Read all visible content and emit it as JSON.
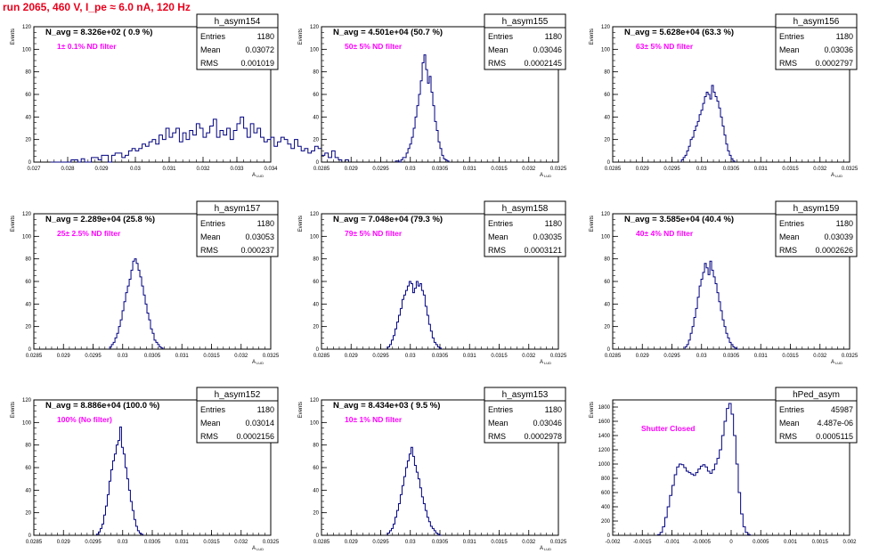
{
  "title": "run 2065,   460 V, I_pe ≈ 6.0 nA, 120 Hz",
  "colors": {
    "title": "#e8001c",
    "histogram": "#000080",
    "annotation": "#ff00ff",
    "frame": "#000000"
  },
  "chart_data": [
    {
      "type": "histogram",
      "name": "h_asym154",
      "navg": "N_avg = 8.326e+02 ( 0.9 %)",
      "annotation": "1± 0.1% ND filter",
      "stats": [
        [
          "Entries",
          "1180"
        ],
        [
          "Mean",
          "0.03072"
        ],
        [
          "RMS",
          "0.001019"
        ]
      ],
      "ylabel": "Events",
      "xlabel": "A",
      "xlim": [
        0.027,
        0.034
      ],
      "ylim": [
        0,
        120
      ],
      "xticks": [
        "0.027",
        "0.028",
        "0.029",
        "0.03",
        "0.031",
        "0.032",
        "0.033",
        "0.034"
      ],
      "xtick_values": [
        0.027,
        0.028,
        0.029,
        0.03,
        0.031,
        0.032,
        0.033,
        0.034
      ],
      "yticks": [
        0,
        20,
        40,
        60,
        80,
        100,
        120
      ],
      "bins": {
        "start": 0.0275,
        "width": 0.0001,
        "counts": [
          0,
          0,
          0,
          0,
          0,
          0,
          2,
          2,
          0,
          3,
          0,
          0,
          4,
          4,
          2,
          6,
          6,
          0,
          6,
          8,
          8,
          4,
          6,
          10,
          12,
          10,
          12,
          16,
          14,
          18,
          20,
          16,
          24,
          20,
          30,
          22,
          26,
          30,
          18,
          26,
          20,
          28,
          24,
          34,
          30,
          22,
          26,
          32,
          38,
          22,
          28,
          24,
          30,
          20,
          28,
          34,
          40,
          30,
          22,
          34,
          26,
          30,
          22,
          18,
          20,
          22,
          14,
          18,
          22,
          20,
          16,
          12,
          20,
          14,
          10,
          12,
          8,
          10,
          14,
          12,
          6,
          8,
          4,
          10,
          4,
          2,
          0,
          2,
          0,
          0
        ]
      }
    },
    {
      "type": "histogram",
      "name": "h_asym155",
      "navg": "N_avg = 4.501e+04 (50.7 %)",
      "annotation": "50± 5% ND filter",
      "stats": [
        [
          "Entries",
          "1180"
        ],
        [
          "Mean",
          "0.03046"
        ],
        [
          "RMS",
          "0.0002145"
        ]
      ],
      "ylabel": "Events",
      "xlabel": "A",
      "xlim": [
        0.0285,
        0.0325
      ],
      "ylim": [
        0,
        120
      ],
      "xticks": [
        "0.0285",
        "0.029",
        "0.0295",
        "0.03",
        "0.0305",
        "0.031",
        "0.0315",
        "0.032",
        "0.0325"
      ],
      "xtick_values": [
        0.0285,
        0.029,
        0.0295,
        0.03,
        0.0305,
        0.031,
        0.0315,
        0.032,
        0.0325
      ],
      "yticks": [
        0,
        20,
        40,
        60,
        80,
        100,
        120
      ],
      "bins": {
        "start": 0.02975,
        "width": 3e-05,
        "counts": [
          1,
          1,
          0,
          2,
          4,
          4,
          8,
          12,
          16,
          22,
          30,
          40,
          50,
          60,
          72,
          88,
          95,
          82,
          70,
          76,
          62,
          50,
          36,
          28,
          18,
          12,
          6,
          3,
          2,
          1
        ]
      }
    },
    {
      "type": "histogram",
      "name": "h_asym156",
      "navg": "N_avg = 5.628e+04 (63.3 %)",
      "annotation": "63± 5% ND filter",
      "stats": [
        [
          "Entries",
          "1180"
        ],
        [
          "Mean",
          "0.03036"
        ],
        [
          "RMS",
          "0.0002797"
        ]
      ],
      "ylabel": "Events",
      "xlabel": "A",
      "xlim": [
        0.0285,
        0.0325
      ],
      "ylim": [
        0,
        120
      ],
      "xticks": [
        "0.0285",
        "0.029",
        "0.0295",
        "0.03",
        "0.0305",
        "0.031",
        "0.0315",
        "0.032",
        "0.0325"
      ],
      "xtick_values": [
        0.0285,
        0.029,
        0.0295,
        0.03,
        0.0305,
        0.031,
        0.0315,
        0.032,
        0.0325
      ],
      "yticks": [
        0,
        20,
        40,
        60,
        80,
        100,
        120
      ],
      "bins": {
        "start": 0.02966,
        "width": 3e-05,
        "counts": [
          2,
          4,
          6,
          10,
          14,
          20,
          22,
          28,
          32,
          36,
          42,
          46,
          52,
          58,
          62,
          60,
          56,
          68,
          62,
          58,
          54,
          48,
          40,
          32,
          24,
          16,
          10,
          6,
          3,
          1
        ]
      }
    },
    {
      "type": "histogram",
      "name": "h_asym157",
      "navg": "N_avg = 2.289e+04 (25.8 %)",
      "annotation": "25± 2.5% ND filter",
      "stats": [
        [
          "Entries",
          "1180"
        ],
        [
          "Mean",
          "0.03053"
        ],
        [
          "RMS",
          "0.000237"
        ]
      ],
      "ylabel": "Events",
      "xlabel": "A",
      "xlim": [
        0.0285,
        0.0325
      ],
      "ylim": [
        0,
        120
      ],
      "xticks": [
        "0.0285",
        "0.029",
        "0.0295",
        "0.03",
        "0.0305",
        "0.031",
        "0.0315",
        "0.032",
        "0.0325"
      ],
      "xtick_values": [
        0.0285,
        0.029,
        0.0295,
        0.03,
        0.0305,
        0.031,
        0.0315,
        0.032,
        0.0325
      ],
      "yticks": [
        0,
        20,
        40,
        60,
        80,
        100,
        120
      ],
      "bins": {
        "start": 0.02978,
        "width": 3e-05,
        "counts": [
          2,
          4,
          6,
          10,
          14,
          20,
          26,
          34,
          42,
          50,
          56,
          62,
          70,
          78,
          80,
          76,
          70,
          64,
          56,
          48,
          40,
          32,
          26,
          18,
          14,
          8,
          6,
          4,
          2,
          1
        ]
      }
    },
    {
      "type": "histogram",
      "name": "h_asym158",
      "navg": "N_avg = 7.048e+04 (79.3 %)",
      "annotation": "79± 5% ND filter",
      "stats": [
        [
          "Entries",
          "1180"
        ],
        [
          "Mean",
          "0.03035"
        ],
        [
          "RMS",
          "0.0003121"
        ]
      ],
      "ylabel": "Events",
      "xlabel": "A",
      "xlim": [
        0.0285,
        0.0325
      ],
      "ylim": [
        0,
        120
      ],
      "xticks": [
        "0.0285",
        "0.029",
        "0.0295",
        "0.03",
        "0.0305",
        "0.031",
        "0.0315",
        "0.032",
        "0.0325"
      ],
      "xtick_values": [
        0.0285,
        0.029,
        0.0295,
        0.03,
        0.0305,
        0.031,
        0.0315,
        0.032,
        0.0325
      ],
      "yticks": [
        0,
        20,
        40,
        60,
        80,
        100,
        120
      ],
      "bins": {
        "start": 0.02962,
        "width": 3e-05,
        "counts": [
          2,
          4,
          8,
          12,
          18,
          24,
          30,
          36,
          44,
          48,
          52,
          56,
          60,
          58,
          50,
          54,
          60,
          56,
          58,
          52,
          48,
          38,
          30,
          22,
          16,
          10,
          6,
          4,
          2,
          1
        ]
      }
    },
    {
      "type": "histogram",
      "name": "h_asym159",
      "navg": "N_avg = 3.585e+04 (40.4 %)",
      "annotation": "40± 4% ND filter",
      "stats": [
        [
          "Entries",
          "1180"
        ],
        [
          "Mean",
          "0.03039"
        ],
        [
          "RMS",
          "0.0002626"
        ]
      ],
      "ylabel": "Events",
      "xlabel": "A",
      "xlim": [
        0.0285,
        0.0325
      ],
      "ylim": [
        0,
        120
      ],
      "xticks": [
        "0.0285",
        "0.029",
        "0.0295",
        "0.03",
        "0.0305",
        "0.031",
        "0.0315",
        "0.032",
        "0.0325"
      ],
      "xtick_values": [
        0.0285,
        0.029,
        0.0295,
        0.03,
        0.0305,
        0.031,
        0.0315,
        0.032,
        0.0325
      ],
      "yticks": [
        0,
        20,
        40,
        60,
        80,
        100,
        120
      ],
      "bins": {
        "start": 0.02972,
        "width": 3e-05,
        "counts": [
          2,
          4,
          8,
          14,
          20,
          28,
          36,
          46,
          56,
          62,
          68,
          76,
          72,
          66,
          78,
          70,
          64,
          58,
          50,
          42,
          34,
          26,
          20,
          14,
          10,
          6,
          4,
          2,
          1,
          0
        ]
      }
    },
    {
      "type": "histogram",
      "name": "h_asym152",
      "navg": "N_avg = 8.886e+04 (100.0 %)",
      "annotation": "100% (No filter)",
      "stats": [
        [
          "Entries",
          "1180"
        ],
        [
          "Mean",
          "0.03014"
        ],
        [
          "RMS",
          "0.0002156"
        ]
      ],
      "ylabel": "Events",
      "xlabel": "A",
      "xlim": [
        0.0285,
        0.0325
      ],
      "ylim": [
        0,
        120
      ],
      "xticks": [
        "0.0285",
        "0.029",
        "0.0295",
        "0.03",
        "0.0305",
        "0.031",
        "0.0315",
        "0.032",
        "0.0325"
      ],
      "xtick_values": [
        0.0285,
        0.029,
        0.0295,
        0.03,
        0.0305,
        0.031,
        0.0315,
        0.032,
        0.0325
      ],
      "yticks": [
        0,
        20,
        40,
        60,
        80,
        100,
        120
      ],
      "bins": {
        "start": 0.02956,
        "width": 3e-05,
        "counts": [
          1,
          3,
          6,
          10,
          18,
          26,
          36,
          48,
          58,
          66,
          72,
          80,
          84,
          96,
          78,
          72,
          60,
          50,
          40,
          30,
          22,
          14,
          8,
          4,
          2,
          1
        ]
      }
    },
    {
      "type": "histogram",
      "name": "h_asym153",
      "navg": "N_avg = 8.434e+03 ( 9.5 %)",
      "annotation": "10± 1% ND filter",
      "stats": [
        [
          "Entries",
          "1180"
        ],
        [
          "Mean",
          "0.03046"
        ],
        [
          "RMS",
          "0.0002978"
        ]
      ],
      "ylabel": "Events",
      "xlabel": "A",
      "xlim": [
        0.0285,
        0.0325
      ],
      "ylim": [
        0,
        120
      ],
      "xticks": [
        "0.0285",
        "0.029",
        "0.0295",
        "0.03",
        "0.0305",
        "0.031",
        "0.0315",
        "0.032",
        "0.0325"
      ],
      "xtick_values": [
        0.0285,
        0.029,
        0.0295,
        0.03,
        0.0305,
        0.031,
        0.0315,
        0.032,
        0.0325
      ],
      "yticks": [
        0,
        20,
        40,
        60,
        80,
        100,
        120
      ],
      "bins": {
        "start": 0.02962,
        "width": 3e-05,
        "counts": [
          2,
          4,
          6,
          10,
          16,
          22,
          28,
          36,
          44,
          52,
          60,
          66,
          72,
          78,
          70,
          62,
          56,
          50,
          42,
          34,
          28,
          22,
          16,
          12,
          8,
          6,
          4,
          2,
          1,
          0
        ]
      }
    },
    {
      "type": "histogram",
      "name": "hPed_asym",
      "navg": "",
      "annotation": "Shutter Closed",
      "stats": [
        [
          "Entries",
          "45987"
        ],
        [
          "Mean",
          "4.487e-06"
        ],
        [
          "RMS",
          "0.0005115"
        ]
      ],
      "ylabel": "Events",
      "xlabel": "",
      "xlim": [
        -0.002,
        0.002
      ],
      "ylim": [
        0,
        1900
      ],
      "xticks": [
        "-0.002",
        "-0.0015",
        "-0.001",
        "-0.0005",
        "0",
        "0.0005",
        "0.001",
        "0.0015",
        "0.002"
      ],
      "xtick_values": [
        -0.002,
        -0.0015,
        -0.001,
        -0.0005,
        0,
        0.0005,
        0.001,
        0.0015,
        0.002
      ],
      "yticks": [
        0,
        200,
        400,
        600,
        800,
        1000,
        1200,
        1400,
        1600,
        1800
      ],
      "bins": {
        "start": -0.00124,
        "width": 4e-05,
        "counts": [
          10,
          40,
          120,
          250,
          400,
          560,
          700,
          850,
          960,
          1000,
          990,
          950,
          900,
          880,
          860,
          840,
          880,
          930,
          970,
          990,
          960,
          900,
          870,
          920,
          1000,
          1080,
          1200,
          1400,
          1600,
          1780,
          1850,
          1700,
          1400,
          1000,
          600,
          300,
          120,
          40,
          10
        ]
      }
    }
  ]
}
